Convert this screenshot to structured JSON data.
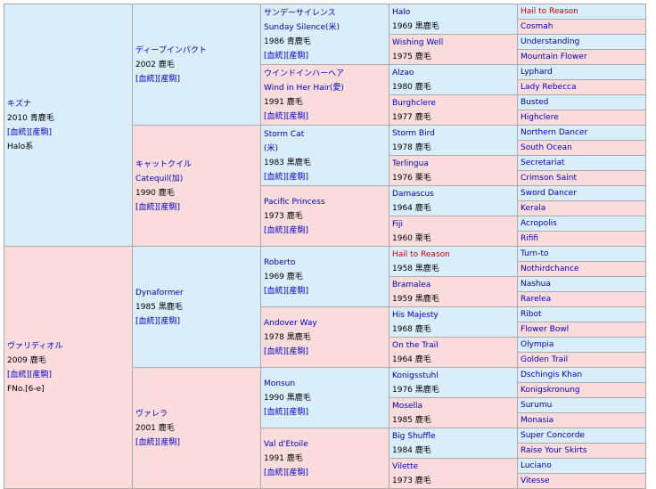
{
  "g1": [
    {
      "name": "キズナ",
      "lines": [
        "2010 青鹿毛",
        "[血統][産駒]",
        "Halo系"
      ]
    },
    {
      "name": "ヴァリディオル",
      "lines": [
        "2009 鹿毛",
        "[血統][産駒]",
        "FNo.[6-e]"
      ]
    }
  ],
  "g2": [
    {
      "name": "ディープインパクト",
      "lines": [
        "2002 鹿毛",
        "[血統][産駒]"
      ]
    },
    {
      "name": "キャットクイル",
      "name2": "Catequil(加)",
      "lines": [
        "1990 鹿毛",
        "[血統][産駒]"
      ]
    },
    {
      "name": "Dynaformer",
      "lines": [
        "1985 黒鹿毛",
        "[血統][産駒]"
      ]
    },
    {
      "name": "ヴァレラ",
      "lines": [
        "2001 鹿毛",
        "[血統][産駒]"
      ]
    }
  ],
  "g3": [
    {
      "name": "サンデーサイレンス",
      "name2": "Sunday Silence(米)",
      "lines": [
        "1986 青鹿毛",
        "[血統][産駒]"
      ]
    },
    {
      "name": "ウインドインハーヘア",
      "name2": "Wind in Her Hair(愛)",
      "lines": [
        "1991 鹿毛",
        "[血統][産駒]"
      ]
    },
    {
      "name": "Storm Cat",
      "name2": "(米)",
      "lines": [
        "1983 黒鹿毛",
        "[血統][産駒]"
      ]
    },
    {
      "name": "Pacific Princess",
      "lines": [
        "1973 鹿毛",
        "[血統][産駒]"
      ]
    },
    {
      "name": "Roberto",
      "lines": [
        "1969 鹿毛",
        "[血統][産駒]"
      ]
    },
    {
      "name": "Andover Way",
      "lines": [
        "1978 黒鹿毛",
        "[血統][産駒]"
      ]
    },
    {
      "name": "Monsun",
      "lines": [
        "1990 黒鹿毛",
        "[血統][産駒]"
      ]
    },
    {
      "name": "Val d'Etoile",
      "lines": [
        "1991 鹿毛",
        "[血統][産駒]"
      ]
    }
  ],
  "g4": [
    {
      "name": "Halo",
      "year": "1969 黒鹿毛"
    },
    {
      "name": "Wishing Well",
      "year": "1975 鹿毛"
    },
    {
      "name": "Alzao",
      "year": "1980 鹿毛"
    },
    {
      "name": "Burghclere",
      "year": "1977 鹿毛"
    },
    {
      "name": "Storm Bird",
      "year": "1978 鹿毛"
    },
    {
      "name": "Terlingua",
      "year": "1976 栗毛"
    },
    {
      "name": "Damascus",
      "year": "1964 鹿毛"
    },
    {
      "name": "Fiji",
      "year": "1960 栗毛"
    },
    {
      "name": "Hail to Reason",
      "year": "1958 黒鹿毛"
    },
    {
      "name": "Bramalea",
      "year": "1959 黒鹿毛"
    },
    {
      "name": "His Majesty",
      "year": "1968 鹿毛"
    },
    {
      "name": "On the Trail",
      "year": "1964 鹿毛"
    },
    {
      "name": "Konigsstuhl",
      "year": "1976 黒鹿毛"
    },
    {
      "name": "Mosella",
      "year": "1985 鹿毛"
    },
    {
      "name": "Big Shuffle",
      "year": "1984 鹿毛"
    },
    {
      "name": "Vilette",
      "year": "1973 鹿毛"
    }
  ],
  "g5": [
    "Hail to Reason",
    "Cosmah",
    "Understanding",
    "Mountain Flower",
    "Lyphard",
    "Lady Rebecca",
    "Busted",
    "Highclere",
    "Northern Dancer",
    "South Ocean",
    "Secretariat",
    "Crimson Saint",
    "Sword Dancer",
    "Kerala",
    "Acropolis",
    "Rififi",
    "Turn-to",
    "Nothirdchance",
    "Nashua",
    "Rarelea",
    "Ribot",
    "Flower Bowl",
    "Olympia",
    "Golden Trail",
    "Dschingis Khan",
    "Konigskronung",
    "Surumu",
    "Monasia",
    "Super Concorde",
    "Raise Your Skirts",
    "Luciano",
    "Vitesse"
  ],
  "colors": {
    "inbreed": "#cc0000",
    "link": "#0000cc",
    "male_bg": "#d9eefa",
    "female_bg": "#fadcdc"
  }
}
